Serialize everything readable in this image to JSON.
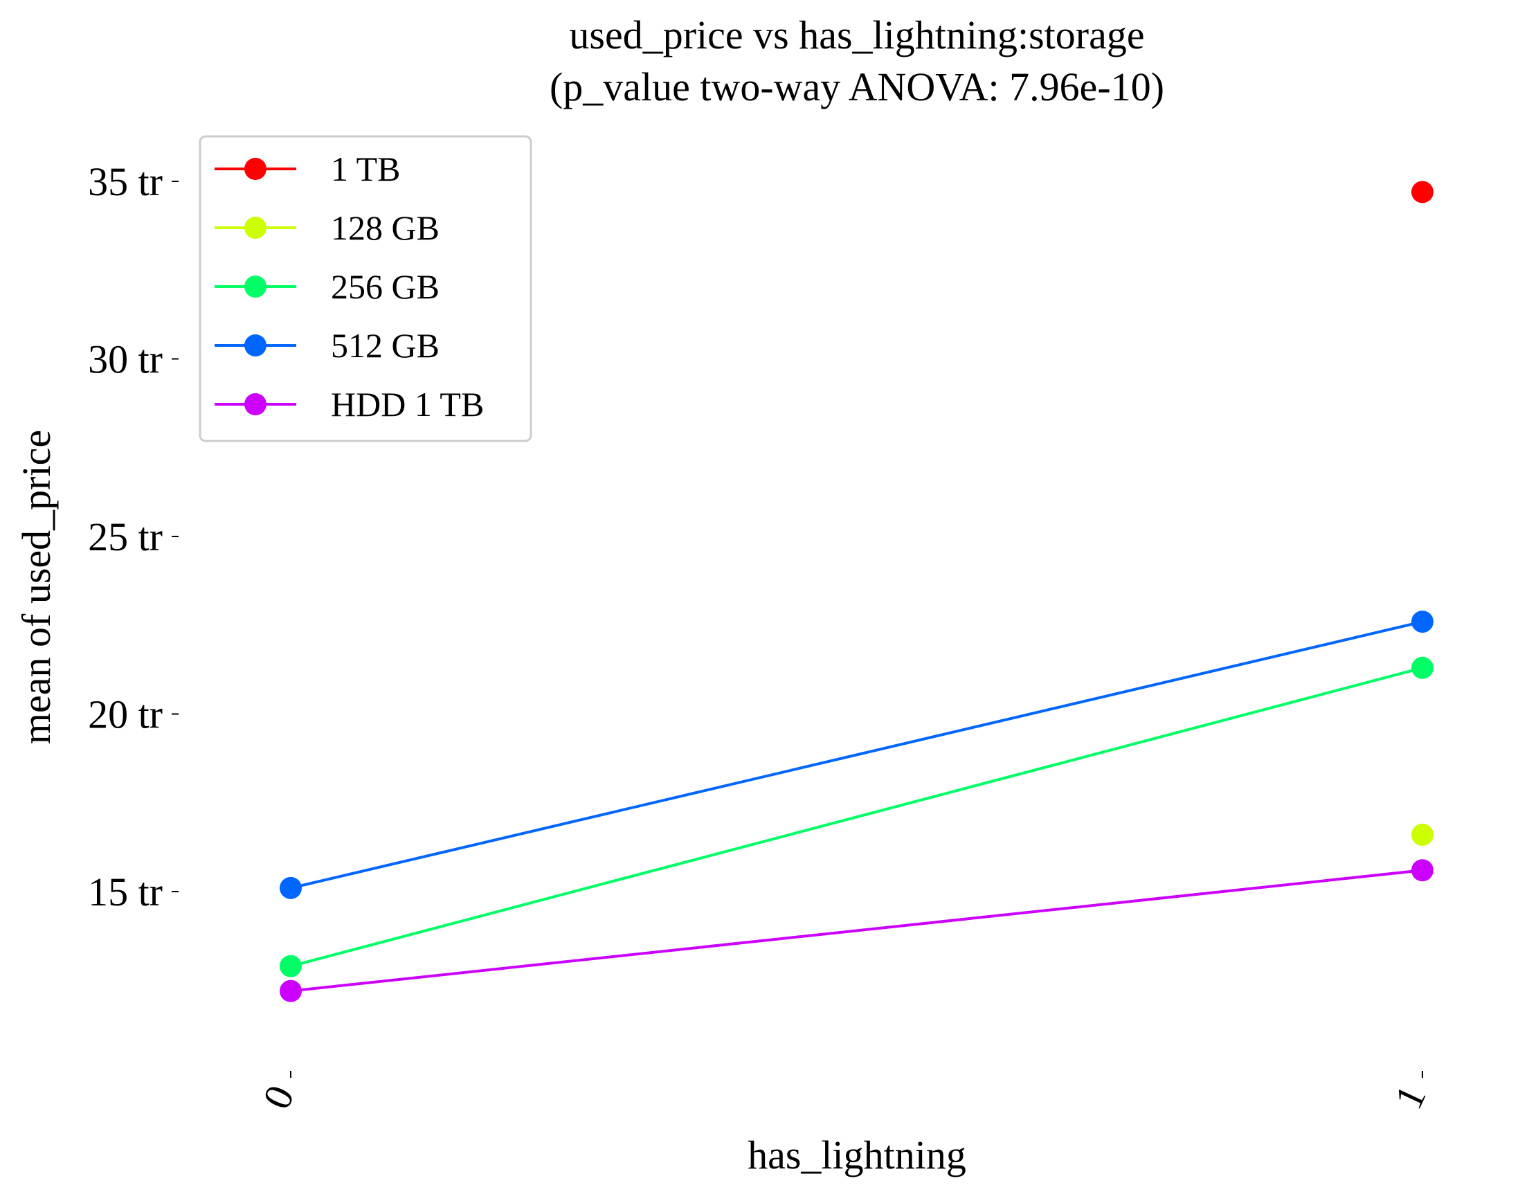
{
  "chart_data": {
    "type": "line",
    "title": "used_price vs has_lightning:storage",
    "subtitle": "(p_value two-way ANOVA: 7.96e-10)",
    "xlabel": "has_lightning",
    "ylabel": "mean of used_price",
    "categories": [
      "0",
      "1"
    ],
    "y_ticks": [
      15,
      20,
      25,
      30,
      35
    ],
    "y_tick_labels": [
      "15 tr",
      "20 tr",
      "25 tr",
      "30 tr",
      "35 tr"
    ],
    "ylim": [
      9.8,
      36.5
    ],
    "grid": false,
    "legend_position": "top-left",
    "series": [
      {
        "name": "1 TB",
        "color": "#ff0000",
        "values": [
          null,
          34.7
        ]
      },
      {
        "name": "128 GB",
        "color": "#ccff00",
        "values": [
          null,
          16.6
        ]
      },
      {
        "name": "256 GB",
        "color": "#00ff66",
        "values": [
          12.9,
          21.3
        ]
      },
      {
        "name": "512 GB",
        "color": "#0066ff",
        "values": [
          15.1,
          22.6
        ]
      },
      {
        "name": "HDD 1 TB",
        "color": "#cc00ff",
        "values": [
          12.2,
          15.6
        ]
      }
    ]
  }
}
